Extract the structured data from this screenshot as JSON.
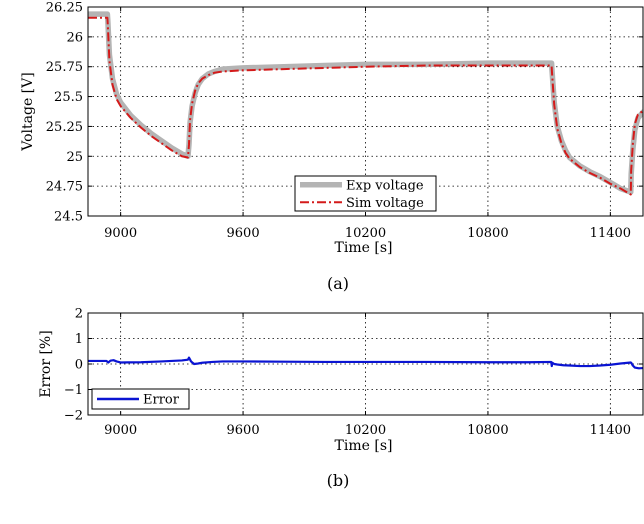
{
  "chart_data": [
    {
      "type": "line",
      "panel": "a",
      "caption": "(a)",
      "xlabel": "Time [s]",
      "ylabel": "Voltage [V]",
      "xlim": [
        8840,
        11560
      ],
      "ylim": [
        24.5,
        26.25
      ],
      "xticks": [
        9000,
        9600,
        10200,
        10800,
        11400
      ],
      "xtick_labels": [
        "9000",
        "9600",
        "10200",
        "10800",
        "11400"
      ],
      "yticks": [
        24.5,
        24.75,
        25,
        25.25,
        25.5,
        25.75,
        26,
        26.25
      ],
      "ytick_labels": [
        "24.5",
        "24.75",
        "25",
        "25.25",
        "25.5",
        "25.75",
        "26",
        "26.25"
      ],
      "grid": true,
      "legend": "bottom-center",
      "series": [
        {
          "name": "Exp voltage",
          "color": "#b4b4b4",
          "style": "solid-thick",
          "x": [
            8840,
            8935,
            8937,
            8945,
            8960,
            8980,
            9000,
            9050,
            9100,
            9150,
            9200,
            9250,
            9300,
            9330,
            9335,
            9340,
            9350,
            9365,
            9380,
            9400,
            9430,
            9460,
            9500,
            9600,
            9800,
            10000,
            10200,
            10500,
            10800,
            11000,
            11112,
            11114,
            11125,
            11140,
            11160,
            11180,
            11200,
            11250,
            11300,
            11350,
            11400,
            11450,
            11500,
            11502,
            11510,
            11520,
            11535,
            11560
          ],
          "y": [
            26.19,
            26.19,
            26.14,
            25.85,
            25.65,
            25.52,
            25.45,
            25.34,
            25.26,
            25.19,
            25.13,
            25.07,
            25.02,
            25.0,
            25.1,
            25.28,
            25.42,
            25.53,
            25.6,
            25.65,
            25.69,
            25.71,
            25.73,
            25.74,
            25.75,
            25.76,
            25.77,
            25.77,
            25.78,
            25.78,
            25.78,
            25.72,
            25.45,
            25.25,
            25.13,
            25.05,
            24.99,
            24.92,
            24.87,
            24.83,
            24.78,
            24.73,
            24.7,
            24.85,
            25.05,
            25.22,
            25.32,
            25.37
          ]
        },
        {
          "name": "Sim voltage",
          "color": "#d41a1a",
          "style": "dash-dot",
          "x": [
            8840,
            8935,
            8937,
            8945,
            8960,
            8980,
            9000,
            9050,
            9100,
            9150,
            9200,
            9250,
            9300,
            9330,
            9335,
            9340,
            9350,
            9365,
            9380,
            9400,
            9430,
            9460,
            9500,
            9600,
            9800,
            10000,
            10200,
            10500,
            10800,
            11000,
            11112,
            11114,
            11125,
            11140,
            11160,
            11180,
            11200,
            11250,
            11300,
            11350,
            11400,
            11450,
            11500,
            11502,
            11510,
            11520,
            11535,
            11560
          ],
          "y": [
            26.16,
            26.16,
            26.1,
            25.8,
            25.6,
            25.48,
            25.42,
            25.32,
            25.24,
            25.17,
            25.11,
            25.05,
            25.0,
            24.99,
            25.1,
            25.3,
            25.44,
            25.55,
            25.61,
            25.65,
            25.68,
            25.7,
            25.71,
            25.72,
            25.73,
            25.74,
            25.75,
            25.76,
            25.76,
            25.76,
            25.76,
            25.7,
            25.43,
            25.23,
            25.11,
            25.03,
            24.98,
            24.91,
            24.86,
            24.82,
            24.77,
            24.73,
            24.68,
            24.88,
            25.1,
            25.27,
            25.35,
            25.38
          ]
        }
      ]
    },
    {
      "type": "line",
      "panel": "b",
      "caption": "(b)",
      "xlabel": "Time [s]",
      "ylabel": "Error [%]",
      "xlim": [
        8840,
        11560
      ],
      "ylim": [
        -2,
        2
      ],
      "xticks": [
        9000,
        9600,
        10200,
        10800,
        11400
      ],
      "xtick_labels": [
        "9000",
        "9600",
        "10200",
        "10800",
        "11400"
      ],
      "yticks": [
        -2,
        -1,
        0,
        1,
        2
      ],
      "ytick_labels": [
        "−2",
        "−1",
        "0",
        "1",
        "2"
      ],
      "grid": true,
      "legend": "bottom-left",
      "series": [
        {
          "name": "Error",
          "color": "#0a14d2",
          "style": "solid",
          "x": [
            8840,
            8900,
            8930,
            8940,
            8950,
            8965,
            8980,
            9000,
            9100,
            9200,
            9300,
            9330,
            9335,
            9345,
            9360,
            9380,
            9400,
            9450,
            9500,
            9600,
            9800,
            10000,
            10200,
            10500,
            10800,
            11000,
            11110,
            11113,
            11116,
            11125,
            11140,
            11170,
            11200,
            11250,
            11300,
            11350,
            11400,
            11450,
            11500,
            11503,
            11510,
            11520,
            11540,
            11560
          ],
          "y": [
            0.12,
            0.12,
            0.12,
            0.06,
            0.13,
            0.15,
            0.1,
            0.06,
            0.07,
            0.1,
            0.14,
            0.17,
            0.25,
            0.1,
            0.0,
            0.02,
            0.05,
            0.08,
            0.1,
            0.1,
            0.09,
            0.08,
            0.08,
            0.08,
            0.07,
            0.07,
            0.08,
            -0.08,
            0.05,
            0.0,
            -0.02,
            -0.05,
            -0.06,
            -0.08,
            -0.08,
            -0.06,
            -0.03,
            0.02,
            0.06,
            0.04,
            -0.06,
            -0.14,
            -0.17,
            -0.16
          ]
        }
      ]
    }
  ]
}
